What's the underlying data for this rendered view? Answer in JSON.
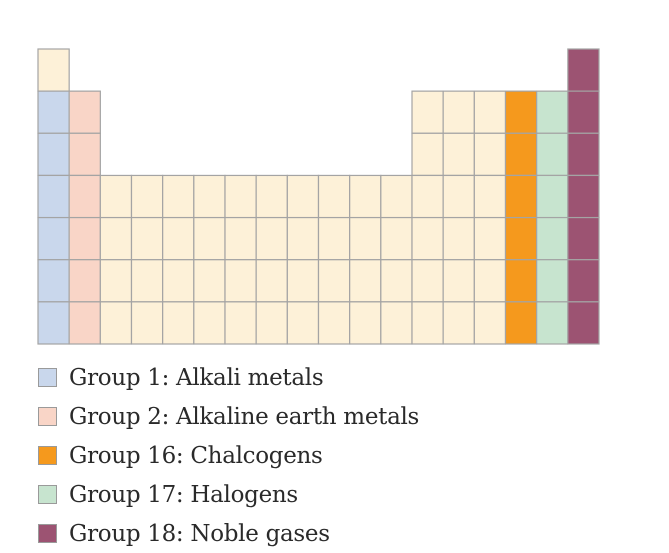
{
  "periodic_table": {
    "colors": {
      "other": "#fdf1d8",
      "group_1": "#c9d7ec",
      "group_2": "#f9d5c7",
      "group_16": "#f5991d",
      "group_17": "#c7e4cf",
      "group_18": "#9c5372",
      "cell_border": "#a4a4a4"
    },
    "columns": 18,
    "periods": 7
  },
  "legend": {
    "items": [
      {
        "name": "group-1",
        "label": "Group 1: Alkali metals",
        "color": "#c9d7ec"
      },
      {
        "name": "group-2",
        "label": "Group 2: Alkaline earth metals",
        "color": "#f9d5c7"
      },
      {
        "name": "group-16",
        "label": "Group 16: Chalcogens",
        "color": "#f5991d"
      },
      {
        "name": "group-17",
        "label": "Group 17: Halogens",
        "color": "#c7e4cf"
      },
      {
        "name": "group-18",
        "label": "Group 18: Noble gases",
        "color": "#9c5372"
      }
    ]
  }
}
